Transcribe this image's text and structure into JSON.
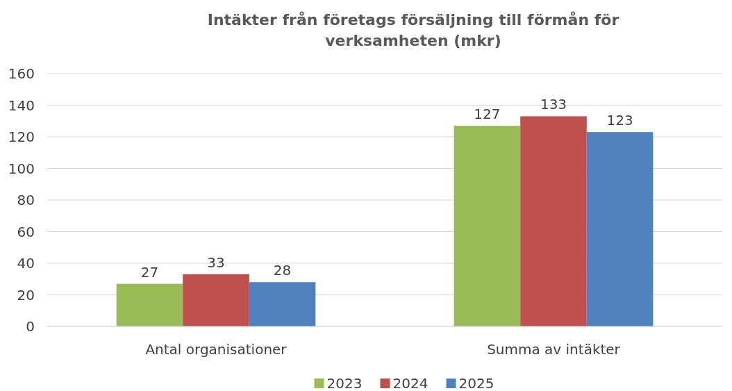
{
  "chart_data": {
    "type": "bar",
    "title": "Intäkter från företags försäljning till förmån för verksamheten (mkr)",
    "categories": [
      "Antal organisationer",
      "Summa av intäkter"
    ],
    "series": [
      {
        "name": "2023",
        "color": "#9bbb59",
        "values": [
          27,
          127
        ]
      },
      {
        "name": "2024",
        "color": "#c0504d",
        "values": [
          33,
          133
        ]
      },
      {
        "name": "2025",
        "color": "#4f81bd",
        "values": [
          28,
          123
        ]
      }
    ],
    "ylim": [
      0,
      160
    ],
    "yticks": [
      0,
      20,
      40,
      60,
      80,
      100,
      120,
      140,
      160
    ],
    "grid": "y",
    "legend": "bottom",
    "data_labels": true
  }
}
